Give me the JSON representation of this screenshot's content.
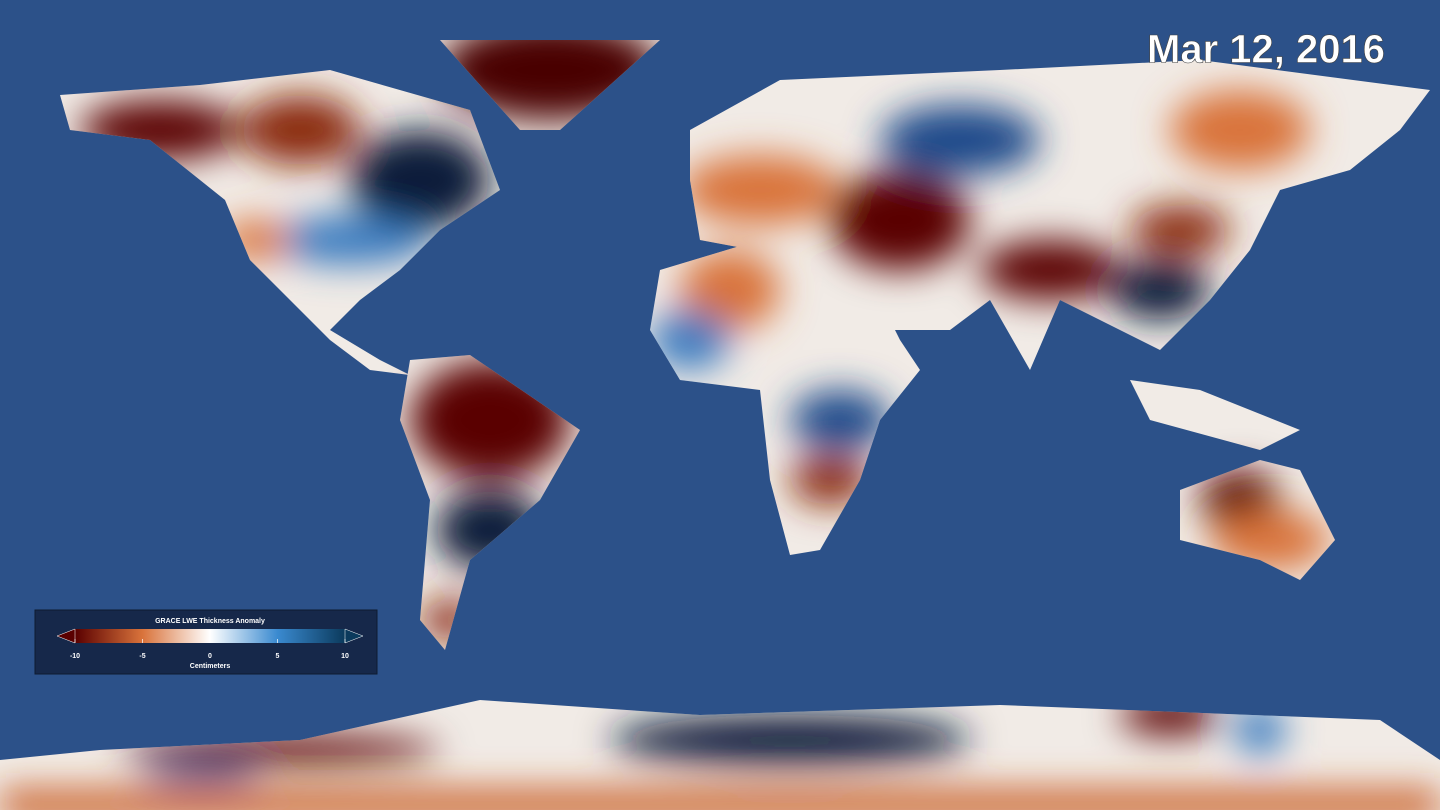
{
  "date": "Mar 12, 2016",
  "colorbar": {
    "title": "GRACE LWE Thickness Anomaly",
    "unit": "Centimeters",
    "lim": [
      -10,
      10
    ],
    "ticks": [
      -10,
      -5,
      0,
      5,
      10
    ],
    "colors": [
      "#5a0000",
      "#d9733b",
      "#ffffff",
      "#3a8ad0",
      "#0b3a5c"
    ]
  }
}
